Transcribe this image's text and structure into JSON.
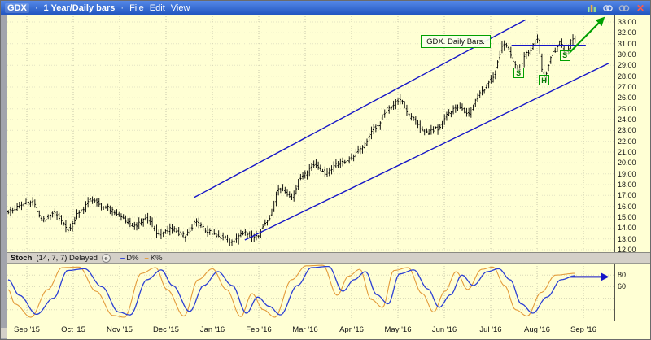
{
  "titlebar": {
    "symbol": "GDX",
    "separator": "·",
    "timeframe": "1 Year/Daily bars",
    "menus": [
      "File",
      "Edit",
      "View"
    ],
    "close_glyph": "✕"
  },
  "price_axis": {
    "ticks": [
      "33.00",
      "32.00",
      "31.00",
      "30.00",
      "29.00",
      "28.00",
      "27.00",
      "26.00",
      "25.00",
      "24.00",
      "23.00",
      "22.00",
      "21.00",
      "20.00",
      "19.00",
      "18.00",
      "17.00",
      "16.00",
      "15.00",
      "14.00",
      "13.00",
      "12.00"
    ]
  },
  "stoch_axis": {
    "ticks": [
      "80",
      "60"
    ]
  },
  "x_axis": {
    "labels": [
      "Sep '15",
      "Oct '15",
      "Nov '15",
      "Dec '15",
      "Jan '16",
      "Feb '16",
      "Mar '16",
      "Apr '16",
      "May '16",
      "Jun '16",
      "Jul '16",
      "Aug '16",
      "Sep '16"
    ]
  },
  "indicator_header": {
    "name": "Stoch",
    "params": "(14, 7, 7) Delayed",
    "badge": "e",
    "legend": [
      {
        "dash": "–",
        "label": "D%",
        "color": "#2b3fd4"
      },
      {
        "dash": "–",
        "label": "K%",
        "color": "#e39b3b"
      }
    ]
  },
  "chart_data": {
    "type": "ohlc-bar",
    "symbol": "GDX",
    "timeframe": "1 Year/Daily bars",
    "background": "#ffffd4",
    "bar_color": "#000000",
    "channel_color": "#1515c8",
    "annotation_color": "#00a000",
    "ylim": [
      11.8,
      33.5
    ],
    "y_tick_values": [
      33,
      32,
      31,
      30,
      29,
      28,
      27,
      26,
      25,
      24,
      23,
      22,
      21,
      20,
      19,
      18,
      17,
      16,
      15,
      14,
      13,
      12
    ],
    "x_labels": [
      "Sep '15",
      "Oct '15",
      "Nov '15",
      "Dec '15",
      "Jan '16",
      "Feb '16",
      "Mar '16",
      "Apr '16",
      "May '16",
      "Jun '16",
      "Jul '16",
      "Aug '16",
      "Sep '16"
    ],
    "bar_count": 257,
    "close_path_month_price": [
      [
        -0.4,
        15.6
      ],
      [
        0.1,
        16.4
      ],
      [
        0.35,
        14.7
      ],
      [
        0.6,
        15.4
      ],
      [
        0.9,
        13.9
      ],
      [
        1.15,
        15.6
      ],
      [
        1.4,
        16.6
      ],
      [
        1.7,
        15.9
      ],
      [
        2.0,
        15.1
      ],
      [
        2.3,
        14.2
      ],
      [
        2.6,
        14.8
      ],
      [
        2.85,
        13.4
      ],
      [
        3.1,
        13.9
      ],
      [
        3.4,
        13.3
      ],
      [
        3.65,
        14.5
      ],
      [
        3.9,
        13.7
      ],
      [
        4.15,
        13.2
      ],
      [
        4.45,
        12.8
      ],
      [
        4.7,
        13.5
      ],
      [
        4.95,
        13.2
      ],
      [
        5.2,
        14.8
      ],
      [
        5.45,
        17.6
      ],
      [
        5.7,
        16.9
      ],
      [
        5.95,
        18.9
      ],
      [
        6.2,
        19.9
      ],
      [
        6.45,
        19.1
      ],
      [
        6.7,
        19.9
      ],
      [
        6.95,
        20.3
      ],
      [
        7.2,
        21.3
      ],
      [
        7.5,
        23.2
      ],
      [
        7.8,
        25.0
      ],
      [
        8.05,
        25.8
      ],
      [
        8.3,
        24.1
      ],
      [
        8.6,
        22.8
      ],
      [
        8.85,
        23.2
      ],
      [
        9.1,
        24.5
      ],
      [
        9.3,
        25.3
      ],
      [
        9.5,
        24.5
      ],
      [
        9.75,
        26.3
      ],
      [
        10.0,
        27.6
      ],
      [
        10.3,
        30.9
      ],
      [
        10.6,
        28.6
      ],
      [
        10.8,
        30.2
      ],
      [
        11.0,
        31.4
      ],
      [
        11.15,
        27.9
      ],
      [
        11.35,
        30.2
      ],
      [
        11.5,
        31.2
      ],
      [
        11.6,
        30.2
      ],
      [
        11.82,
        31.7
      ]
    ],
    "annotations": {
      "note_text": "GDX. Daily Bars.",
      "shs": [
        {
          "label": "S",
          "month": 10.6,
          "price": 28.3
        },
        {
          "label": "H",
          "month": 11.15,
          "price": 27.6
        },
        {
          "label": "S",
          "month": 11.6,
          "price": 29.9
        }
      ],
      "trend_channel": {
        "lower": [
          [
            4.7,
            12.9
          ],
          [
            12.55,
            29.2
          ]
        ],
        "upper": [
          [
            3.6,
            16.8
          ],
          [
            10.75,
            33.2
          ]
        ]
      },
      "neckline": {
        "price": 30.85,
        "month_from": 10.45,
        "month_to": 12.05
      },
      "breakout_arrow": {
        "from_month": 11.66,
        "from_price": 30.0,
        "to_month": 12.42,
        "to_price": 33.3
      },
      "stoch_arrow": {
        "value": 77,
        "month_from": 11.7,
        "month_to": 12.5
      }
    },
    "stoch": {
      "label": "Stoch (14, 7, 7) Delayed",
      "range": [
        0,
        100
      ],
      "tick_values": [
        80,
        60
      ],
      "gridlines": [
        80,
        60,
        40,
        20
      ],
      "series": [
        {
          "name": "D%",
          "color": "#2b3fd4",
          "width": 1.3,
          "anchors": [
            [
              0.0,
              72
            ],
            [
              0.02,
              45
            ],
            [
              0.05,
              12
            ],
            [
              0.08,
              40
            ],
            [
              0.105,
              88
            ],
            [
              0.135,
              91
            ],
            [
              0.165,
              60
            ],
            [
              0.195,
              16
            ],
            [
              0.215,
              11
            ],
            [
              0.245,
              72
            ],
            [
              0.27,
              89
            ],
            [
              0.29,
              62
            ],
            [
              0.32,
              17
            ],
            [
              0.345,
              62
            ],
            [
              0.37,
              86
            ],
            [
              0.395,
              62
            ],
            [
              0.42,
              14
            ],
            [
              0.44,
              42
            ],
            [
              0.46,
              26
            ],
            [
              0.48,
              11
            ],
            [
              0.51,
              62
            ],
            [
              0.535,
              93
            ],
            [
              0.565,
              95
            ],
            [
              0.59,
              52
            ],
            [
              0.61,
              72
            ],
            [
              0.63,
              86
            ],
            [
              0.65,
              46
            ],
            [
              0.67,
              30
            ],
            [
              0.69,
              82
            ],
            [
              0.715,
              89
            ],
            [
              0.74,
              56
            ],
            [
              0.76,
              24
            ],
            [
              0.78,
              46
            ],
            [
              0.8,
              80
            ],
            [
              0.82,
              62
            ],
            [
              0.845,
              86
            ],
            [
              0.865,
              91
            ],
            [
              0.885,
              72
            ],
            [
              0.905,
              30
            ],
            [
              0.925,
              14
            ],
            [
              0.95,
              42
            ],
            [
              0.975,
              72
            ],
            [
              1.0,
              79
            ]
          ]
        },
        {
          "name": "K%",
          "color": "#e39b3b",
          "width": 1.1,
          "anchors": [
            [
              0.0,
              55
            ],
            [
              0.012,
              30
            ],
            [
              0.04,
              7
            ],
            [
              0.07,
              55
            ],
            [
              0.095,
              93
            ],
            [
              0.125,
              94
            ],
            [
              0.155,
              52
            ],
            [
              0.185,
              10
            ],
            [
              0.205,
              7
            ],
            [
              0.235,
              83
            ],
            [
              0.26,
              93
            ],
            [
              0.28,
              55
            ],
            [
              0.31,
              9
            ],
            [
              0.335,
              72
            ],
            [
              0.36,
              91
            ],
            [
              0.385,
              55
            ],
            [
              0.41,
              8
            ],
            [
              0.43,
              48
            ],
            [
              0.45,
              20
            ],
            [
              0.47,
              7
            ],
            [
              0.5,
              72
            ],
            [
              0.525,
              96
            ],
            [
              0.555,
              97
            ],
            [
              0.58,
              45
            ],
            [
              0.6,
              78
            ],
            [
              0.62,
              90
            ],
            [
              0.64,
              38
            ],
            [
              0.66,
              24
            ],
            [
              0.68,
              88
            ],
            [
              0.705,
              93
            ],
            [
              0.73,
              48
            ],
            [
              0.75,
              16
            ],
            [
              0.77,
              52
            ],
            [
              0.79,
              86
            ],
            [
              0.81,
              55
            ],
            [
              0.835,
              90
            ],
            [
              0.855,
              94
            ],
            [
              0.875,
              62
            ],
            [
              0.895,
              20
            ],
            [
              0.915,
              9
            ],
            [
              0.94,
              50
            ],
            [
              0.965,
              80
            ],
            [
              1.0,
              83
            ]
          ]
        }
      ]
    }
  }
}
